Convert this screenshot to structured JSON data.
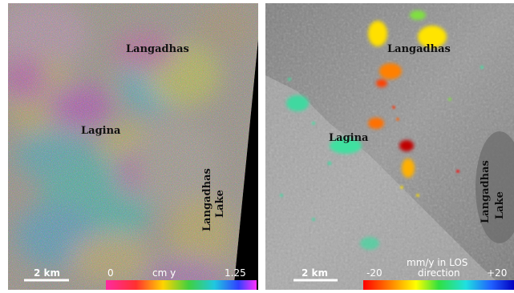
{
  "left_panel": {
    "labels": {
      "town1": "Langadhas",
      "town2": "Lagina",
      "lake_line1": "Langadhas",
      "lake_line2": "Lake"
    },
    "scale_bar": "2 km",
    "colorbar": {
      "min": "0",
      "unit": "cm y",
      "max": "1.25"
    }
  },
  "right_panel": {
    "labels": {
      "town1": "Langadhas",
      "town2": "Lagina",
      "lake_line1": "Langadhas",
      "lake_line2": "Lake"
    },
    "scale_bar": "2 km",
    "colorbar": {
      "min": "-20",
      "unit_line1": "mm/y in LOS",
      "unit_line2": "direction",
      "max": "+20"
    }
  }
}
